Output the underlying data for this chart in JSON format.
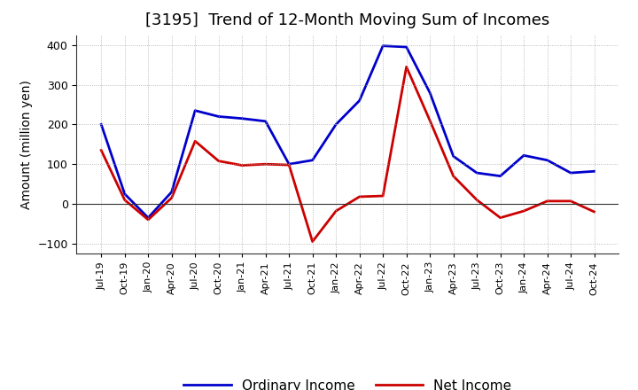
{
  "title": "[3195]  Trend of 12-Month Moving Sum of Incomes",
  "ylabel": "Amount (million yen)",
  "background_color": "#ffffff",
  "grid_color": "#aaaaaa",
  "ylim": [
    -125,
    425
  ],
  "yticks": [
    -100,
    0,
    100,
    200,
    300,
    400
  ],
  "x_labels": [
    "Jul-19",
    "Oct-19",
    "Jan-20",
    "Apr-20",
    "Jul-20",
    "Oct-20",
    "Jan-21",
    "Apr-21",
    "Jul-21",
    "Oct-21",
    "Jan-22",
    "Apr-22",
    "Jul-22",
    "Oct-22",
    "Jan-23",
    "Apr-23",
    "Jul-23",
    "Oct-23",
    "Jan-24",
    "Apr-24",
    "Jul-24",
    "Oct-24"
  ],
  "ordinary_income": [
    200,
    25,
    -35,
    30,
    235,
    220,
    215,
    208,
    100,
    110,
    200,
    260,
    398,
    395,
    280,
    120,
    78,
    70,
    122,
    110,
    78,
    82
  ],
  "net_income": [
    135,
    10,
    -40,
    15,
    158,
    108,
    97,
    100,
    98,
    -95,
    -18,
    18,
    20,
    345,
    210,
    70,
    10,
    -35,
    -18,
    7,
    7,
    -20
  ],
  "ordinary_color": "#0000cc",
  "net_color": "#cc0000",
  "line_width": 2.0,
  "title_fontsize": 13,
  "axis_fontsize": 10,
  "tick_fontsize": 9,
  "legend_fontsize": 11
}
